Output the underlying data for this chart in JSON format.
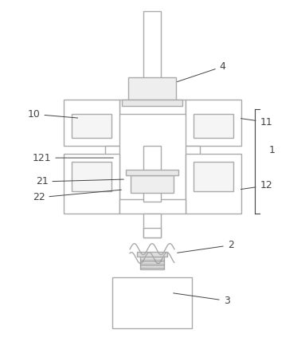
{
  "bg_color": "#ffffff",
  "line_color": "#aaaaaa",
  "label_color": "#444444",
  "fig_width": 3.83,
  "fig_height": 4.43,
  "dpi": 100
}
